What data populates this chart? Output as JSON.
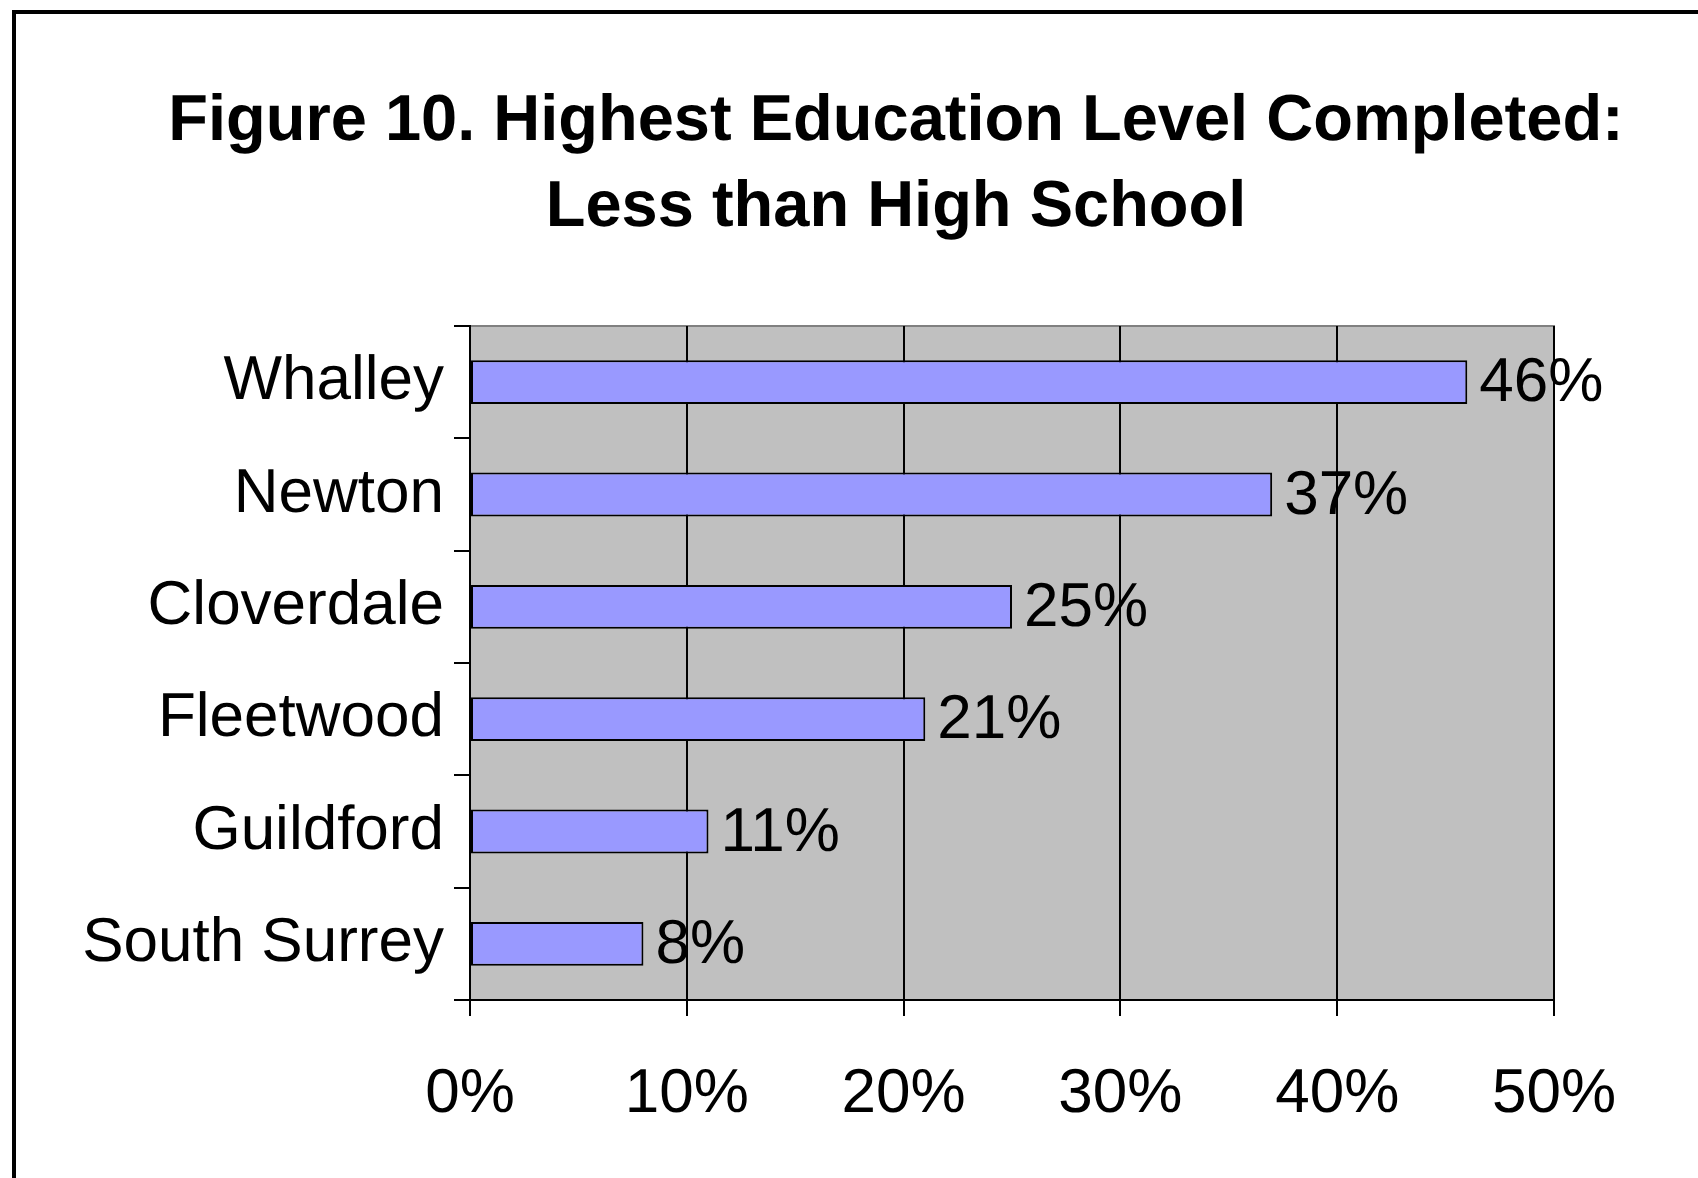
{
  "chart_data": {
    "type": "bar",
    "orientation": "horizontal",
    "title": "Figure 10. Highest Education Level Completed: Less than High School",
    "categories": [
      "Whalley",
      "Newton",
      "Cloverdale",
      "Fleetwood",
      "Guildford",
      "South Surrey"
    ],
    "values": [
      46,
      37,
      25,
      21,
      11,
      8
    ],
    "value_labels": [
      "46%",
      "37%",
      "25%",
      "21%",
      "11%",
      "8%"
    ],
    "color": "#9999ff",
    "xlim": [
      0,
      50
    ],
    "xticks": [
      {
        "value": 0,
        "label": "0%"
      },
      {
        "value": 10,
        "label": "10%"
      },
      {
        "value": 20,
        "label": "20%"
      },
      {
        "value": 30,
        "label": "30%"
      },
      {
        "value": 40,
        "label": "40%"
      },
      {
        "value": 50,
        "label": "50%"
      }
    ],
    "grid": "x"
  }
}
